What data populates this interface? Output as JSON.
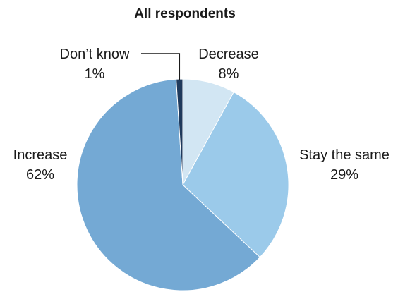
{
  "chart_data": {
    "type": "pie",
    "title": "All respondents",
    "slices": [
      {
        "label": "Decrease",
        "value": 8,
        "value_label": "8%",
        "color": "#d2e6f3"
      },
      {
        "label": "Stay the same",
        "value": 29,
        "value_label": "29%",
        "color": "#9bcaea"
      },
      {
        "label": "Increase",
        "value": 62,
        "value_label": "62%",
        "color": "#74a9d4"
      },
      {
        "label": "Don’t know",
        "value": 1,
        "value_label": "1%",
        "color": "#1f3a5c"
      }
    ],
    "start_angle": "12 o'clock",
    "direction": "clockwise",
    "slice_separator_color": "#ffffff"
  }
}
